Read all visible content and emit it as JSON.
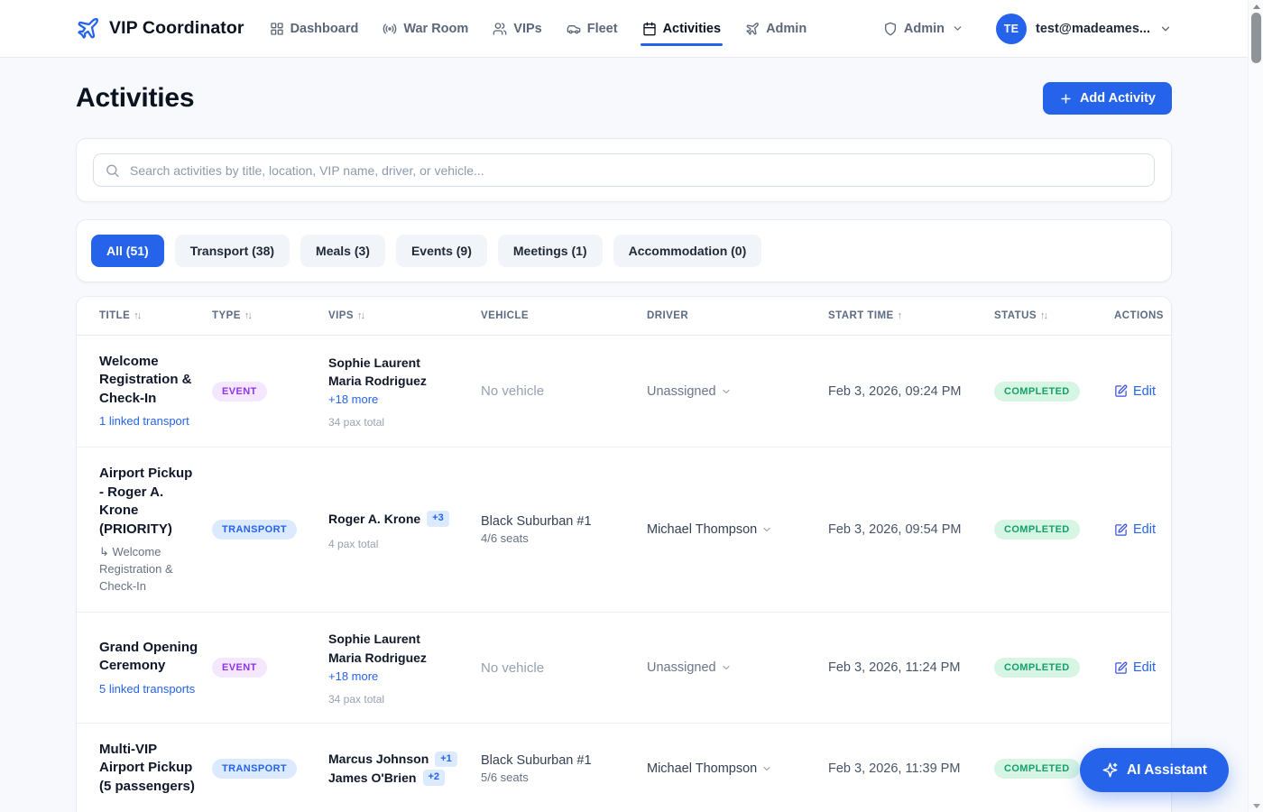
{
  "colors": {
    "primary": "#2563eb",
    "event_badge_bg": "#f3e8ff",
    "event_badge_text": "#9333ea",
    "transport_badge_bg": "#dbeafe",
    "transport_badge_text": "#2563eb",
    "status_completed_bg": "#d6f5e3",
    "status_completed_text": "#15a06a",
    "page_bg": "#f7f9fc"
  },
  "nav": {
    "brand": "VIP Coordinator",
    "items": [
      {
        "label": "Dashboard",
        "icon": "dashboard-icon",
        "active": false
      },
      {
        "label": "War Room",
        "icon": "radio-icon",
        "active": false
      },
      {
        "label": "VIPs",
        "icon": "users-icon",
        "active": false
      },
      {
        "label": "Fleet",
        "icon": "car-icon",
        "active": false
      },
      {
        "label": "Activities",
        "icon": "calendar-icon",
        "active": true
      },
      {
        "label": "Flights",
        "icon": "plane-icon",
        "active": false
      },
      {
        "label": "Admin",
        "icon": "shield-icon",
        "active": false
      }
    ],
    "user": {
      "initials": "TE",
      "email": "test@madeames..."
    }
  },
  "page": {
    "title": "Activities",
    "add_button": "Add Activity"
  },
  "search": {
    "placeholder": "Search activities by title, location, VIP name, driver, or vehicle..."
  },
  "filters": {
    "tabs": [
      {
        "label": "All (51)",
        "active": true
      },
      {
        "label": "Transport (38)",
        "active": false
      },
      {
        "label": "Meals (3)",
        "active": false
      },
      {
        "label": "Events (9)",
        "active": false
      },
      {
        "label": "Meetings (1)",
        "active": false
      },
      {
        "label": "Accommodation (0)",
        "active": false
      }
    ]
  },
  "table": {
    "columns": [
      {
        "label": "TITLE",
        "sort_glyph": "↑↓"
      },
      {
        "label": "TYPE",
        "sort_glyph": "↑↓"
      },
      {
        "label": "VIPS",
        "sort_glyph": "↑↓"
      },
      {
        "label": "VEHICLE",
        "sort_glyph": ""
      },
      {
        "label": "DRIVER",
        "sort_glyph": ""
      },
      {
        "label": "START TIME",
        "sort_glyph": "↑"
      },
      {
        "label": "STATUS",
        "sort_glyph": "↑↓"
      },
      {
        "label": "ACTIONS",
        "sort_glyph": ""
      }
    ],
    "edit_label": "Edit",
    "rows": [
      {
        "title": "Welcome Registration & Check-In",
        "title_link": "1 linked transport",
        "title_sub": "",
        "type": "EVENT",
        "vips": [
          {
            "name": "Sophie Laurent",
            "extra": ""
          },
          {
            "name": "Maria Rodriguez",
            "extra": ""
          }
        ],
        "vips_more": "+18 more",
        "pax": "34 pax total",
        "vehicle": "No vehicle",
        "vehicle_muted": true,
        "vehicle_sub": "",
        "driver": "Unassigned",
        "driver_muted": true,
        "start_time": "Feb 3, 2026, 09:24 PM",
        "status": "COMPLETED"
      },
      {
        "title": "Airport Pickup - Roger A. Krone (PRIORITY)",
        "title_link": "",
        "title_sub": "↳ Welcome Registration & Check-In",
        "type": "TRANSPORT",
        "vips": [
          {
            "name": "Roger A. Krone",
            "extra": "+3"
          }
        ],
        "vips_more": "",
        "pax": "4 pax total",
        "vehicle": "Black Suburban #1",
        "vehicle_muted": false,
        "vehicle_sub": "4/6 seats",
        "driver": "Michael Thompson",
        "driver_muted": false,
        "start_time": "Feb 3, 2026, 09:54 PM",
        "status": "COMPLETED"
      },
      {
        "title": "Grand Opening Ceremony",
        "title_link": "5 linked transports",
        "title_sub": "",
        "type": "EVENT",
        "vips": [
          {
            "name": "Sophie Laurent",
            "extra": ""
          },
          {
            "name": "Maria Rodriguez",
            "extra": ""
          }
        ],
        "vips_more": "+18 more",
        "pax": "34 pax total",
        "vehicle": "No vehicle",
        "vehicle_muted": true,
        "vehicle_sub": "",
        "driver": "Unassigned",
        "driver_muted": true,
        "start_time": "Feb 3, 2026, 11:24 PM",
        "status": "COMPLETED"
      },
      {
        "title": "Multi-VIP Airport Pickup (5 passengers)",
        "title_link": "",
        "title_sub": "",
        "type": "TRANSPORT",
        "vips": [
          {
            "name": "Marcus Johnson",
            "extra": "+1"
          },
          {
            "name": "James O'Brien",
            "extra": "+2"
          }
        ],
        "vips_more": "",
        "pax": "",
        "vehicle": "Black Suburban #1",
        "vehicle_muted": false,
        "vehicle_sub": "5/6 seats",
        "driver": "Michael Thompson",
        "driver_muted": false,
        "start_time": "Feb 3, 2026, 11:39 PM",
        "status": "COMPLETED"
      }
    ]
  },
  "ai_assistant": {
    "label": "AI Assistant"
  }
}
